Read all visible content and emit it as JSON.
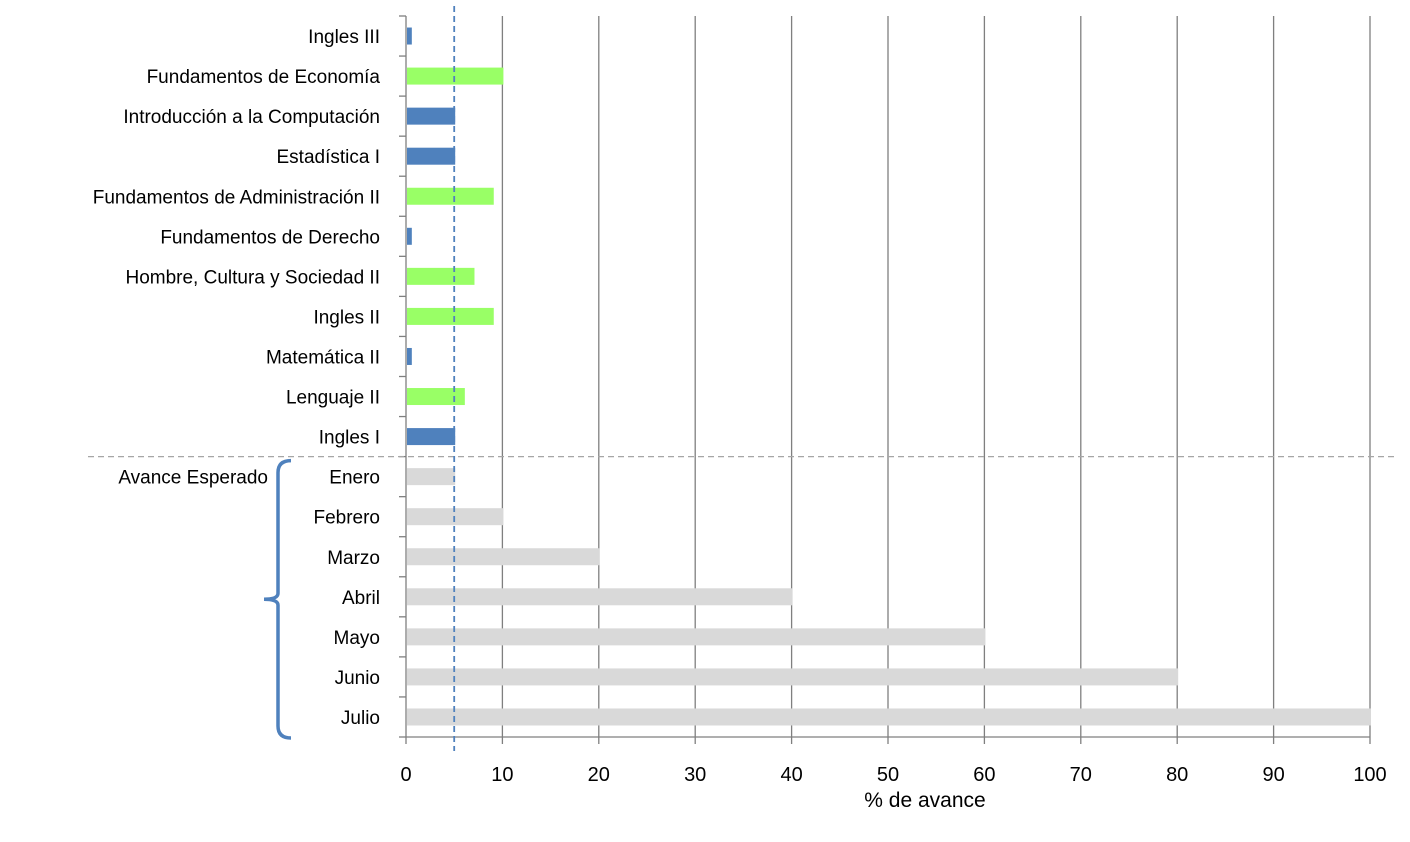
{
  "chart_data": {
    "type": "bar",
    "orientation": "horizontal",
    "xlabel": "% de avance",
    "xlim": [
      0,
      100
    ],
    "xticks": [
      0,
      10,
      20,
      30,
      40,
      50,
      60,
      70,
      80,
      90,
      100
    ],
    "grid": "vertical",
    "categories": [
      "Ingles III",
      "Fundamentos de Economía",
      "Introducción a la Computación",
      "Estadística I",
      "Fundamentos de Administración II",
      "Fundamentos de Derecho",
      "Hombre, Cultura y Sociedad II",
      "Ingles II",
      "Matemática II",
      "Lenguaje II",
      "Ingles I",
      "Enero",
      "Febrero",
      "Marzo",
      "Abril",
      "Mayo",
      "Junio",
      "Julio"
    ],
    "values": [
      0.5,
      10,
      5,
      5,
      9,
      0.5,
      7,
      9,
      0.5,
      6,
      5,
      5,
      10,
      20,
      40,
      60,
      80,
      100
    ],
    "bar_colors": [
      "#4f81bd",
      "#99ff66",
      "#4f81bd",
      "#4f81bd",
      "#99ff66",
      "#4f81bd",
      "#99ff66",
      "#99ff66",
      "#4f81bd",
      "#99ff66",
      "#4f81bd",
      "#d9d9d9",
      "#d9d9d9",
      "#d9d9d9",
      "#d9d9d9",
      "#d9d9d9",
      "#d9d9d9",
      "#d9d9d9"
    ],
    "reference_line": {
      "value": 5,
      "style": "dashed",
      "color": "#4f81bd"
    },
    "group_bracket": {
      "label": "Avance Esperado",
      "from_category": "Enero",
      "to_category": "Julio",
      "color": "#4f81bd"
    },
    "separator": {
      "between": [
        "Ingles I",
        "Enero"
      ],
      "style": "dashed",
      "color": "#a6a6a6"
    }
  }
}
